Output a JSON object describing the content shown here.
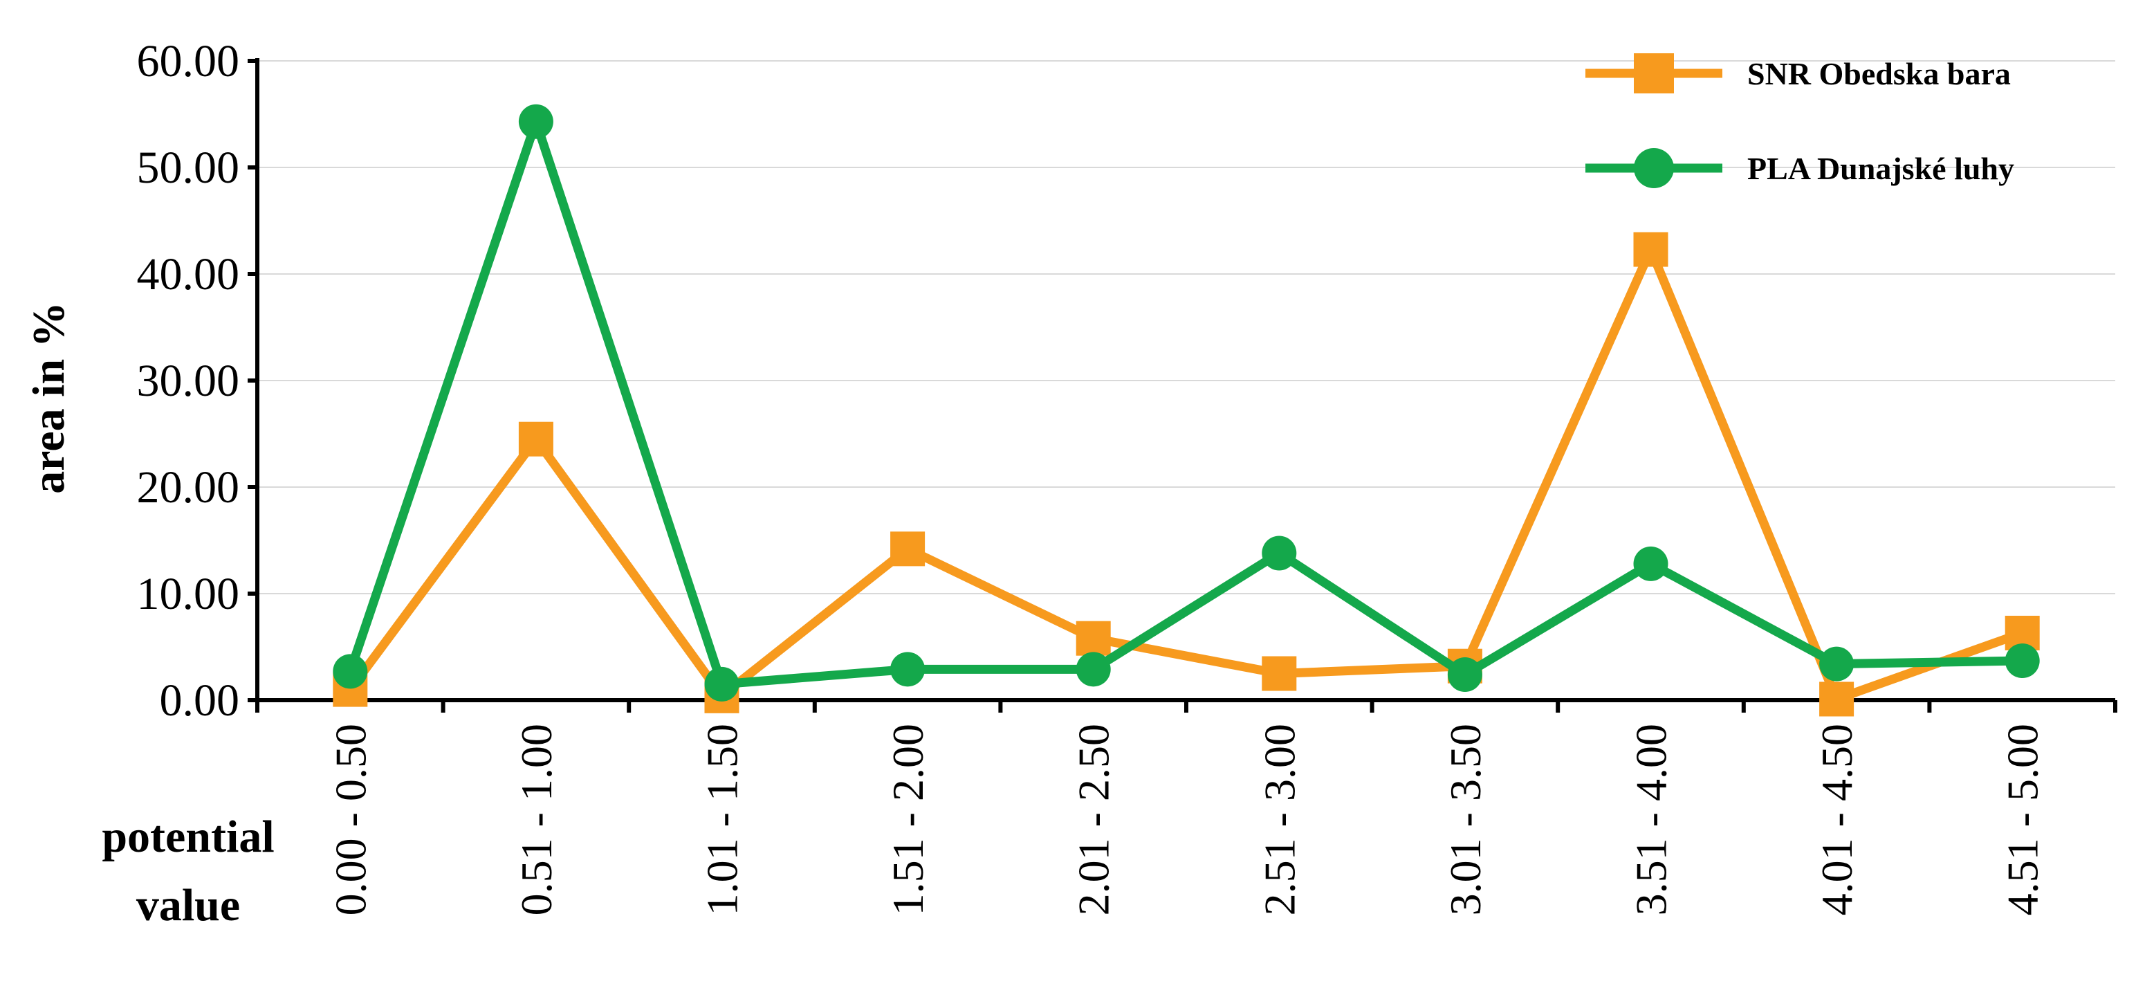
{
  "chart_data": {
    "type": "line",
    "categories": [
      "0.00 - 0.50",
      "0.51 - 1.00",
      "1.01 - 1.50",
      "1.51 - 2.00",
      "2.01 - 2.50",
      "2.51 - 3.00",
      "3.01 - 3.50",
      "3.51 - 4.00",
      "4.01 - 4.50",
      "4.51 - 5.00"
    ],
    "series": [
      {
        "name": "SNR Obedska bara",
        "color": "#F79A1E",
        "marker": "square",
        "values": [
          1.0,
          24.5,
          0.4,
          14.2,
          5.8,
          2.5,
          3.2,
          42.3,
          0.1,
          6.3
        ]
      },
      {
        "name": "PLA Dunajské luhy",
        "color": "#14A84B",
        "marker": "circle",
        "values": [
          2.7,
          54.3,
          1.5,
          2.9,
          2.9,
          13.8,
          2.4,
          12.8,
          3.4,
          3.7
        ]
      }
    ],
    "ylabel": "area in %",
    "xlabel": [
      "potential",
      "value"
    ],
    "ylim": [
      0,
      60
    ],
    "yticks": [
      "0.00",
      "10.00",
      "20.00",
      "30.00",
      "40.00",
      "50.00",
      "60.00"
    ],
    "grid": true,
    "legend_position": "top-right"
  }
}
